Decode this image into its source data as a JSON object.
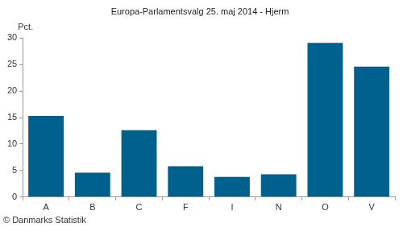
{
  "chart_data": {
    "type": "bar",
    "title": "Europa-Parlamentsvalg 25. maj 2014 - Hjerm",
    "ylabel": "Pct.",
    "source": "© Danmarks Statistik",
    "categories": [
      "A",
      "B",
      "C",
      "F",
      "I",
      "N",
      "O",
      "V"
    ],
    "values": [
      15.3,
      4.6,
      12.6,
      5.8,
      3.8,
      4.3,
      29.1,
      24.6
    ],
    "color": "#00618f",
    "ylim": [
      0,
      30
    ],
    "yticks": [
      0,
      5,
      10,
      15,
      20,
      25,
      30
    ],
    "grid": false
  }
}
